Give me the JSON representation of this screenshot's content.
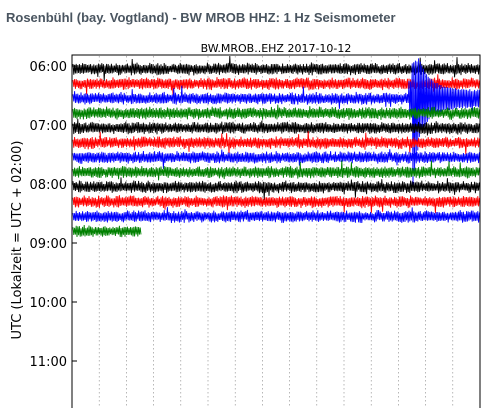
{
  "page": {
    "heading": "Rosenbühl (bay. Vogtland) - BW MROB HHZ: 1 Hz Seismometer"
  },
  "chart_data": {
    "type": "line",
    "title": "BW.MROB..EHZ 2017-10-12",
    "xlabel": "",
    "ylabel": "UTC (Lokalzeit = UTC + 02:00)",
    "y_ticks": [
      "06:00",
      "07:00",
      "08:00",
      "09:00",
      "10:00",
      "11:00"
    ],
    "grid": "vertical dotted",
    "trace_colors": [
      "#000000",
      "#ff0000",
      "#0000ff",
      "#008000"
    ],
    "rows_start_time": "06:00",
    "row_minutes": 15,
    "rows": [
      {
        "start": "06:00",
        "color": "#000000",
        "fraction_of_row": 1.0
      },
      {
        "start": "06:15",
        "color": "#ff0000",
        "fraction_of_row": 1.0
      },
      {
        "start": "06:30",
        "color": "#0000ff",
        "fraction_of_row": 1.0
      },
      {
        "start": "06:45",
        "color": "#008000",
        "fraction_of_row": 1.0
      },
      {
        "start": "07:00",
        "color": "#000000",
        "fraction_of_row": 1.0
      },
      {
        "start": "07:15",
        "color": "#ff0000",
        "fraction_of_row": 1.0
      },
      {
        "start": "07:30",
        "color": "#0000ff",
        "fraction_of_row": 1.0
      },
      {
        "start": "07:45",
        "color": "#008000",
        "fraction_of_row": 1.0
      },
      {
        "start": "08:00",
        "color": "#000000",
        "fraction_of_row": 1.0
      },
      {
        "start": "08:15",
        "color": "#ff0000",
        "fraction_of_row": 1.0
      },
      {
        "start": "08:30",
        "color": "#0000ff",
        "fraction_of_row": 1.0
      },
      {
        "start": "08:45",
        "color": "#008000",
        "fraction_of_row": 0.17
      }
    ],
    "events": [
      {
        "row_start": "06:30",
        "minute_in_row": 12.5,
        "note": "large transient"
      }
    ]
  }
}
